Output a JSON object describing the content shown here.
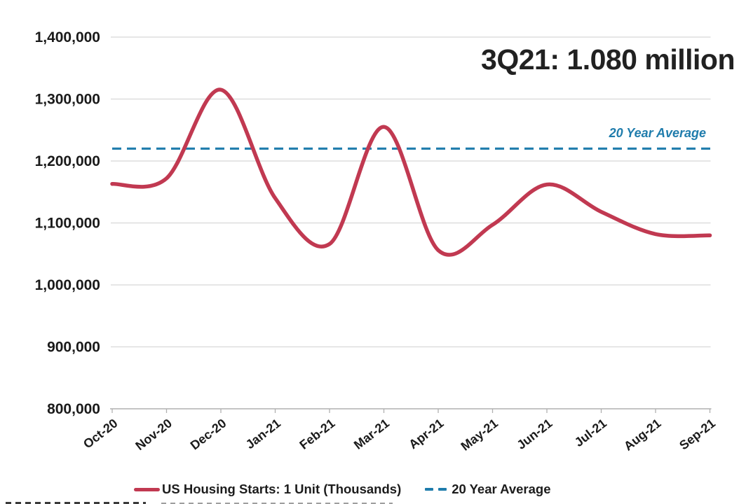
{
  "chart_data": {
    "type": "line",
    "title": "3Q21: 1.080 million",
    "categories": [
      "Oct-20",
      "Nov-20",
      "Dec-20",
      "Jan-21",
      "Feb-21",
      "Mar-21",
      "Apr-21",
      "May-21",
      "Jun-21",
      "Jul-21",
      "Aug-21",
      "Sep-21"
    ],
    "series": [
      {
        "name": "US Housing Starts: 1 Unit (Thousands)",
        "style": "smooth-line",
        "color": "#c13951",
        "values": [
          1163000,
          1172000,
          1315000,
          1140000,
          1066000,
          1255000,
          1056000,
          1097000,
          1162000,
          1118000,
          1082000,
          1080000
        ]
      },
      {
        "name": "20 Year Average",
        "style": "dashed-horizontal-line",
        "color": "#1f7cac",
        "value": 1220000
      }
    ],
    "ylim": [
      800000,
      1400000
    ],
    "y_tick_step": 100000,
    "y_tick_labels": [
      "1,400,000",
      "1,300,000",
      "1,200,000",
      "1,100,000",
      "1,000,000",
      "900,000",
      "800,000"
    ],
    "xlabel": "",
    "ylabel": "",
    "grid": "horizontal",
    "legend_position": "bottom"
  },
  "annotation": {
    "headline": "3Q21: 1.080 million",
    "avg_line_label": "20 Year Average"
  },
  "legend": {
    "items": [
      {
        "label": "US Housing Starts: 1 Unit (Thousands)"
      },
      {
        "label": "20 Year Average"
      }
    ]
  },
  "colors": {
    "series_red": "#c13951",
    "average_blue": "#1f7cac",
    "text_dark": "#212121",
    "gridline": "#d8d8d8",
    "axis": "#b0b0b0"
  }
}
